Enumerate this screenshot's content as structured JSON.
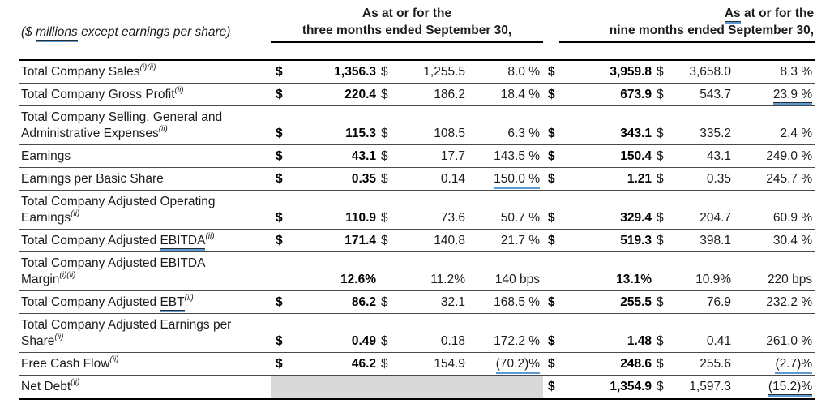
{
  "caption": {
    "pre": "($ ",
    "marked": "millions",
    "post": " except earnings per share)"
  },
  "header": {
    "three_months": {
      "line1": "As at or for the",
      "line2": "three months ended September 30,"
    },
    "nine_months": {
      "line1_marked": "As",
      "line1_rest": " at or for the",
      "line2": "nine months ended September 30,"
    }
  },
  "table": {
    "rows": [
      {
        "lp": "Total Company Sales",
        "lm": "",
        "lq": "",
        "sup": "(i)(ii)",
        "d1": "$",
        "v1": "1,356.3",
        "d2": "$",
        "v2": "1,255.5",
        "c1": "8.0 %",
        "c1m": false,
        "d3": "$",
        "v3": "3,959.8",
        "d4": "$",
        "v4": "3,658.0",
        "c2": "8.3 %",
        "c2m": false,
        "gray": false
      },
      {
        "lp": "Total Company Gross Profit",
        "lm": "",
        "lq": "",
        "sup": "(ii)",
        "d1": "$",
        "v1": "220.4",
        "d2": "$",
        "v2": "186.2",
        "c1": "18.4 %",
        "c1m": false,
        "d3": "$",
        "v3": "673.9",
        "d4": "$",
        "v4": "543.7",
        "c2": "23.9 %",
        "c2m": true,
        "gray": false
      },
      {
        "lp": "Total Company Selling, General and Administrative Expenses",
        "lm": "",
        "lq": "",
        "sup": "(ii)",
        "d1": "$",
        "v1": "115.3",
        "d2": "$",
        "v2": "108.5",
        "c1": "6.3 %",
        "c1m": false,
        "d3": "$",
        "v3": "343.1",
        "d4": "$",
        "v4": "335.2",
        "c2": "2.4 %",
        "c2m": false,
        "gray": false
      },
      {
        "lp": "Earnings",
        "lm": "",
        "lq": "",
        "sup": "",
        "d1": "$",
        "v1": "43.1",
        "d2": "$",
        "v2": "17.7",
        "c1": "143.5 %",
        "c1m": false,
        "d3": "$",
        "v3": "150.4",
        "d4": "$",
        "v4": "43.1",
        "c2": "249.0 %",
        "c2m": false,
        "gray": false
      },
      {
        "lp": "Earnings per Basic Share",
        "lm": "",
        "lq": "",
        "sup": "",
        "d1": "$",
        "v1": "0.35",
        "d2": "$",
        "v2": "0.14",
        "c1": "150.0 %",
        "c1m": true,
        "d3": "$",
        "v3": "1.21",
        "d4": "$",
        "v4": "0.35",
        "c2": "245.7 %",
        "c2m": false,
        "gray": false
      },
      {
        "lp": "Total Company Adjusted Operating Earnings",
        "lm": "",
        "lq": "",
        "sup": "(ii)",
        "d1": "$",
        "v1": "110.9",
        "d2": "$",
        "v2": "73.6",
        "c1": "50.7 %",
        "c1m": false,
        "d3": "$",
        "v3": "329.4",
        "d4": "$",
        "v4": "204.7",
        "c2": "60.9 %",
        "c2m": false,
        "gray": false
      },
      {
        "lp": "Total Company Adjusted ",
        "lm": "EBITDA",
        "lq": "",
        "sup": "(ii)",
        "d1": "$",
        "v1": "171.4",
        "d2": "$",
        "v2": "140.8",
        "c1": "21.7 %",
        "c1m": false,
        "d3": "$",
        "v3": "519.3",
        "d4": "$",
        "v4": "398.1",
        "c2": "30.4 %",
        "c2m": false,
        "gray": false
      },
      {
        "lp": "Total Company Adjusted EBITDA Margin",
        "lm": "",
        "lq": "",
        "sup": "(i)(ii)",
        "d1": "",
        "v1": "12.6%",
        "d2": "",
        "v2": "11.2%",
        "c1": "140 bps",
        "c1m": false,
        "d3": "",
        "v3": "13.1%",
        "d4": "",
        "v4": "10.9%",
        "c2": "220 bps",
        "c2m": false,
        "gray": false
      },
      {
        "lp": "Total Company Adjusted ",
        "lm": "EBT",
        "lq": "",
        "sup": "(ii)",
        "d1": "$",
        "v1": "86.2",
        "d2": "$",
        "v2": "32.1",
        "c1": "168.5 %",
        "c1m": false,
        "d3": "$",
        "v3": "255.5",
        "d4": "$",
        "v4": "76.9",
        "c2": "232.2 %",
        "c2m": false,
        "gray": false
      },
      {
        "lp": "Total Company Adjusted Earnings per Share",
        "lm": "",
        "lq": "",
        "sup": "(ii)",
        "d1": "$",
        "v1": "0.49",
        "d2": "$",
        "v2": "0.18",
        "c1": "172.2 %",
        "c1m": false,
        "d3": "$",
        "v3": "1.48",
        "d4": "$",
        "v4": "0.41",
        "c2": "261.0 %",
        "c2m": false,
        "gray": false
      },
      {
        "lp": "Free Cash Flow",
        "lm": "",
        "lq": "",
        "sup": "(ii)",
        "d1": "$",
        "v1": "46.2",
        "d2": "$",
        "v2": "154.9",
        "c1": "(70.2)%",
        "c1m": true,
        "d3": "$",
        "v3": "248.6",
        "d4": "$",
        "v4": "255.6",
        "c2": "(2.7)%",
        "c2m": true,
        "gray": false
      },
      {
        "lp": "Net Debt",
        "lm": "",
        "lq": "",
        "sup": "(ii)",
        "d1": "",
        "v1": "",
        "d2": "",
        "v2": "",
        "c1": "",
        "c1m": false,
        "d3": "$",
        "v3": "1,354.9",
        "d4": "$",
        "v4": "1,597.3",
        "c2": "(15.2)%",
        "c2m": true,
        "gray": true
      }
    ]
  }
}
